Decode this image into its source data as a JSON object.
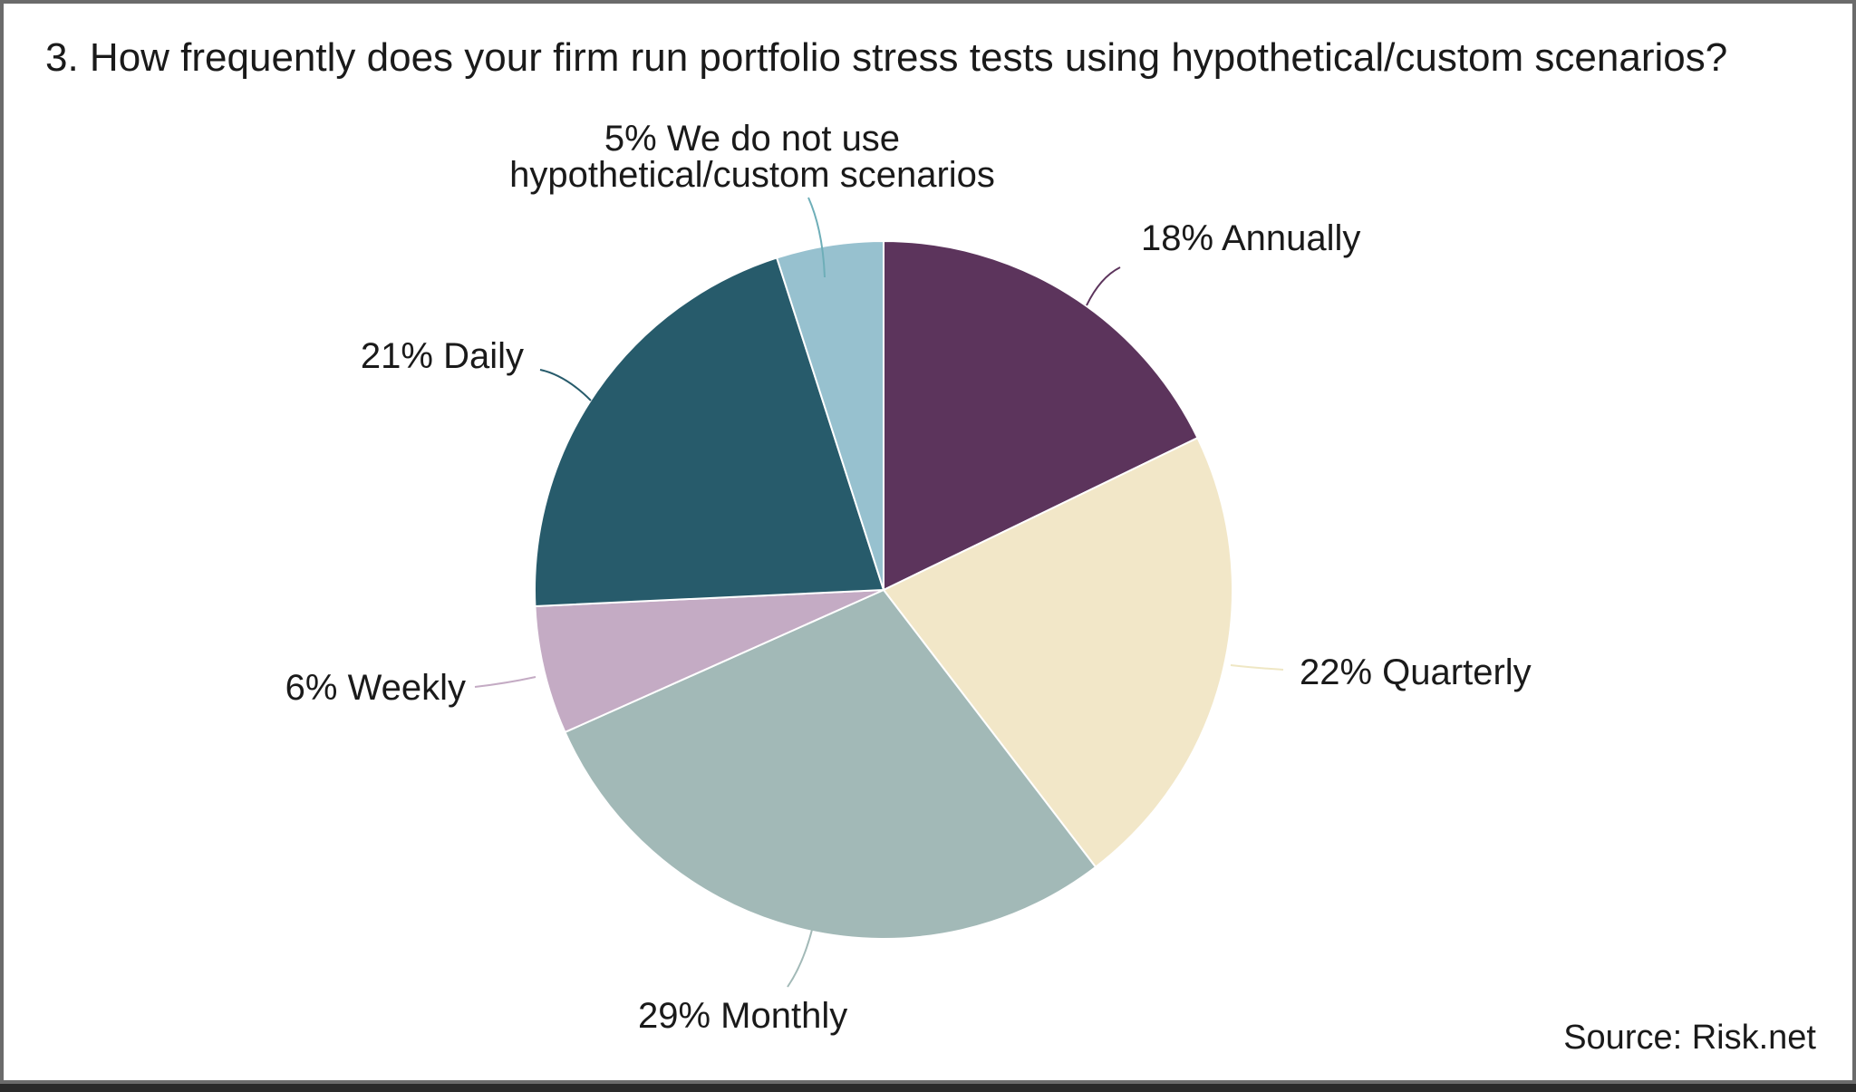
{
  "chart_data": {
    "type": "pie",
    "title": "3. How frequently does your firm run portfolio stress tests using hypothetical/custom scenarios?",
    "source": "Source: Risk.net",
    "slices": [
      {
        "label_lines": [
          "18% Annually"
        ],
        "value": 18,
        "color": "#5c345c",
        "leader_color": "#5c345c"
      },
      {
        "label_lines": [
          "22% Quarterly"
        ],
        "value": 22,
        "color": "#f2e7c8",
        "leader_color": "#efe7c4"
      },
      {
        "label_lines": [
          "29% Monthly"
        ],
        "value": 29,
        "color": "#a2b9b7",
        "leader_color": "#a2b9b7"
      },
      {
        "label_lines": [
          "6% Weekly"
        ],
        "value": 6,
        "color": "#c4abc4",
        "leader_color": "#c4abc4"
      },
      {
        "label_lines": [
          "21% Daily"
        ],
        "value": 21,
        "color": "#275b6b",
        "leader_color": "#275b6b"
      },
      {
        "label_lines": [
          "5% We do not use",
          "hypothetical/custom scenarios"
        ],
        "value": 5,
        "color": "#97c1cf",
        "leader_color": "#6eaeb8"
      }
    ]
  }
}
